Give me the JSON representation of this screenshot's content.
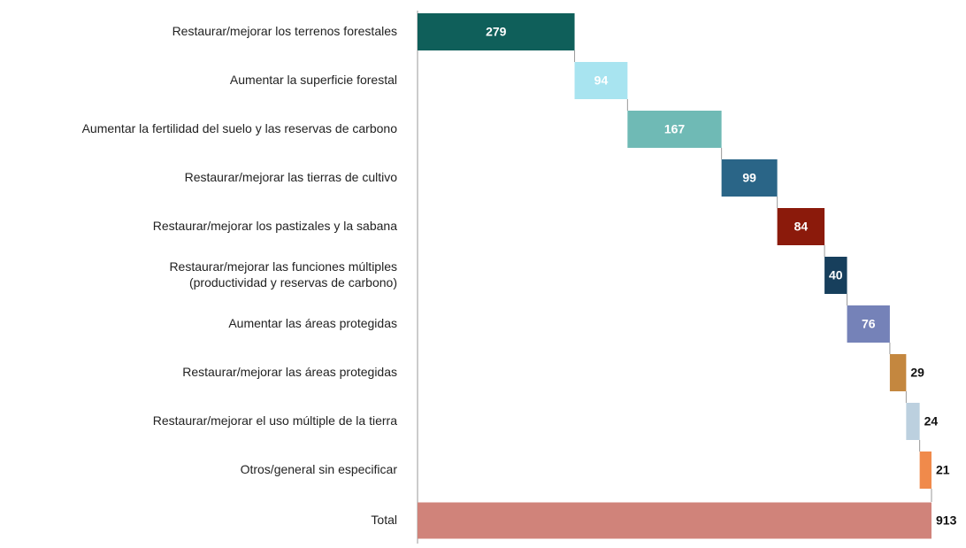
{
  "chart_data": {
    "type": "waterfall",
    "categories": [
      "Restaurar/mejorar los terrenos forestales",
      "Aumentar la superficie forestal",
      "Aumentar la fertilidad del suelo y las reservas de carbono",
      "Restaurar/mejorar las tierras de cultivo",
      "Restaurar/mejorar los pastizales y la sabana",
      "Restaurar/mejorar las funciones múltiples\n(productividad y reservas de carbono)",
      "Aumentar las áreas protegidas",
      "Restaurar/mejorar las áreas protegidas",
      "Restaurar/mejorar el uso múltiple de la tierra",
      "Otros/general sin especificar"
    ],
    "values": [
      279,
      94,
      167,
      99,
      84,
      40,
      76,
      29,
      24,
      21
    ],
    "colors": [
      "#0f5f5a",
      "#a8e4f0",
      "#6fbab5",
      "#2a6587",
      "#8b1a0b",
      "#173f5c",
      "#7582b8",
      "#c4873f",
      "#bcd0df",
      "#f08a4b"
    ],
    "total": {
      "name": "Total",
      "value": 913,
      "color": "#d0837a"
    }
  }
}
